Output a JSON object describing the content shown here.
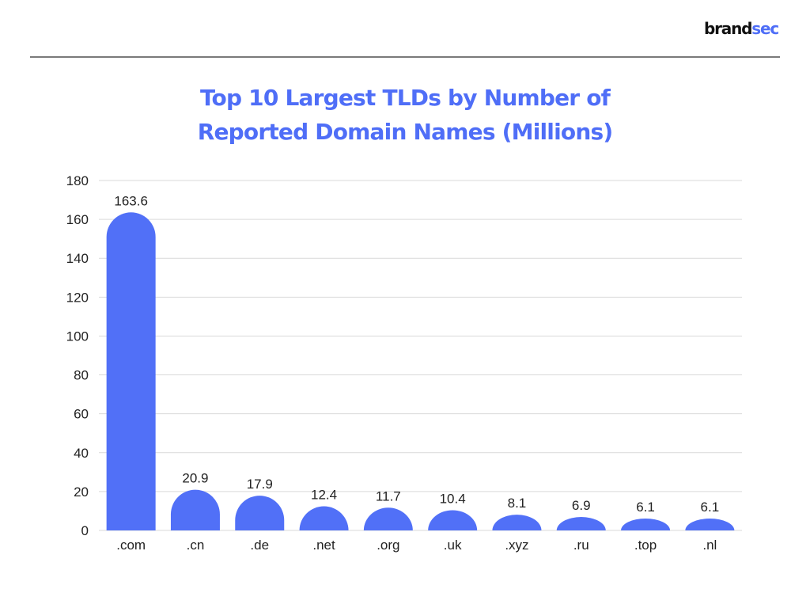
{
  "brand": {
    "part1": "brand",
    "part2": "sec"
  },
  "chart_data": {
    "type": "bar",
    "title_lines": [
      "Top 10 Largest TLDs by Number of",
      "Reported Domain Names (Millions)"
    ],
    "categories": [
      ".com",
      ".cn",
      ".de",
      ".net",
      ".org",
      ".uk",
      ".xyz",
      ".ru",
      ".top",
      ".nl"
    ],
    "values": [
      163.6,
      20.9,
      17.9,
      12.4,
      11.7,
      10.4,
      8.1,
      6.9,
      6.1,
      6.1
    ],
    "value_labels": [
      "163.6",
      "20.9",
      "17.9",
      "12.4",
      "11.7",
      "10.4",
      "8.1",
      "6.9",
      "6.1",
      "6.1"
    ],
    "yticks": [
      "0",
      "20",
      "40",
      "60",
      "80",
      "100",
      "120",
      "140",
      "160",
      "180"
    ],
    "ylim": [
      0,
      180
    ],
    "xlabel": "",
    "ylabel": "",
    "grid": true,
    "legend": "none",
    "bar_color": "#5170f7",
    "grid_color": "#d9d9d9"
  }
}
